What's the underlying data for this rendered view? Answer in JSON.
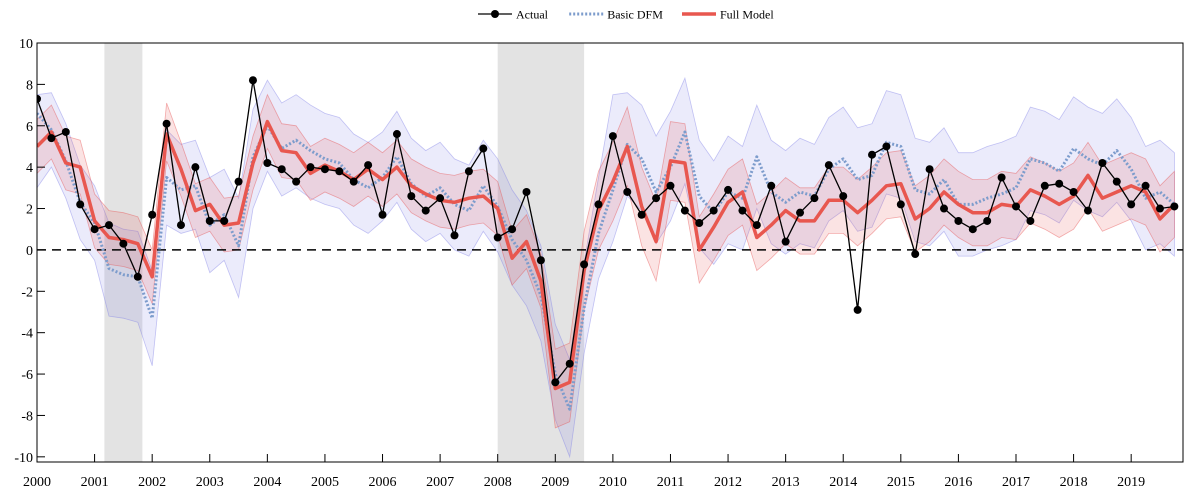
{
  "chart_data": {
    "type": "line",
    "x": [
      2000,
      2000.25,
      2000.5,
      2000.75,
      2001,
      2001.25,
      2001.5,
      2001.75,
      2002,
      2002.25,
      2002.5,
      2002.75,
      2003,
      2003.25,
      2003.5,
      2003.75,
      2004,
      2004.25,
      2004.5,
      2004.75,
      2005,
      2005.25,
      2005.5,
      2005.75,
      2006,
      2006.25,
      2006.5,
      2006.75,
      2007,
      2007.25,
      2007.5,
      2007.75,
      2008,
      2008.25,
      2008.5,
      2008.75,
      2009,
      2009.25,
      2009.5,
      2009.75,
      2010,
      2010.25,
      2010.5,
      2010.75,
      2011,
      2011.25,
      2011.5,
      2011.75,
      2012,
      2012.25,
      2012.5,
      2012.75,
      2013,
      2013.25,
      2013.5,
      2013.75,
      2014,
      2014.25,
      2014.5,
      2014.75,
      2015,
      2015.25,
      2015.5,
      2015.75,
      2016,
      2016.25,
      2016.5,
      2016.75,
      2017,
      2017.25,
      2017.5,
      2017.75,
      2018,
      2018.25,
      2018.5,
      2018.75,
      2019,
      2019.25,
      2019.5,
      2019.75
    ],
    "series": [
      {
        "name": "Actual",
        "color": "#000000",
        "marker": "circle",
        "line_style": "solid",
        "values": [
          7.3,
          5.4,
          5.7,
          2.2,
          1.0,
          1.2,
          0.3,
          -1.3,
          1.7,
          6.1,
          1.2,
          4.0,
          1.4,
          1.4,
          3.3,
          8.2,
          4.2,
          3.9,
          3.3,
          4.0,
          3.9,
          3.8,
          3.3,
          4.1,
          1.7,
          5.6,
          2.6,
          1.9,
          2.5,
          0.7,
          3.8,
          4.9,
          0.6,
          1.0,
          2.8,
          -0.5,
          -6.4,
          -5.5,
          -0.7,
          2.2,
          5.5,
          2.8,
          1.7,
          2.5,
          3.1,
          1.9,
          1.3,
          1.9,
          2.9,
          1.9,
          1.2,
          3.1,
          0.4,
          1.8,
          2.5,
          4.1,
          2.6,
          -2.9,
          4.6,
          5.0,
          2.2,
          -0.2,
          3.9,
          2.0,
          1.4,
          1.0,
          1.4,
          3.5,
          2.1,
          1.4,
          3.1,
          3.2,
          2.8,
          1.9,
          4.2,
          3.3,
          2.2,
          3.1,
          2.0,
          2.1
        ]
      },
      {
        "name": "Basic DFM",
        "color": "#7d9ccc",
        "band_color": "#8080e6",
        "marker": "none",
        "line_style": "dotted",
        "values": [
          6.6,
          5.8,
          4.3,
          2.3,
          1.3,
          -0.9,
          -1.2,
          -1.3,
          -3.3,
          3.5,
          2.9,
          3.1,
          1.2,
          1.7,
          0.2,
          4.5,
          6.0,
          4.9,
          5.3,
          4.8,
          4.4,
          4.2,
          3.4,
          3.0,
          3.5,
          4.5,
          3.2,
          2.6,
          3.0,
          2.2,
          1.9,
          3.1,
          2.1,
          0.5,
          -0.5,
          -2.2,
          -6.0,
          -7.7,
          -2.8,
          0.8,
          2.9,
          5.1,
          4.4,
          2.8,
          4.0,
          5.7,
          2.6,
          1.8,
          2.8,
          2.5,
          4.5,
          2.8,
          2.3,
          2.8,
          2.6,
          3.9,
          4.4,
          3.4,
          3.6,
          5.2,
          5.0,
          2.9,
          2.7,
          3.4,
          2.2,
          2.2,
          2.5,
          2.7,
          3.0,
          4.4,
          4.2,
          3.8,
          4.9,
          4.4,
          4.1,
          4.8,
          3.9,
          2.5,
          2.8,
          2.2
        ],
        "lower": [
          3.0,
          4.0,
          2.5,
          0.5,
          -0.5,
          -3.2,
          -3.3,
          -3.5,
          -5.6,
          1.2,
          0.8,
          1.0,
          -1.1,
          -0.5,
          -2.3,
          2.0,
          3.8,
          2.6,
          3.0,
          2.5,
          2.2,
          2.0,
          1.2,
          0.8,
          1.4,
          2.3,
          1.0,
          0.4,
          0.8,
          0.0,
          -0.3,
          0.9,
          -0.1,
          -1.7,
          -2.7,
          -4.4,
          -8.2,
          -10.0,
          -5.0,
          -1.4,
          0.4,
          2.6,
          1.9,
          0.3,
          1.4,
          3.2,
          0.1,
          -0.7,
          0.3,
          0.0,
          2.0,
          0.3,
          -0.2,
          0.3,
          0.1,
          1.4,
          1.9,
          0.9,
          1.1,
          2.7,
          2.5,
          0.4,
          0.2,
          0.9,
          -0.3,
          -0.3,
          0.0,
          0.2,
          0.5,
          1.9,
          1.7,
          1.3,
          2.4,
          1.9,
          1.6,
          2.3,
          1.4,
          0.0,
          0.3,
          -0.3
        ],
        "upper": [
          7.5,
          7.6,
          6.1,
          4.1,
          3.1,
          1.3,
          1.0,
          0.9,
          -1.0,
          5.8,
          5.1,
          5.3,
          3.5,
          3.9,
          2.5,
          6.8,
          8.2,
          7.1,
          7.5,
          7.0,
          6.6,
          6.4,
          5.6,
          5.2,
          5.7,
          6.7,
          5.4,
          4.8,
          5.2,
          4.4,
          4.1,
          5.3,
          4.4,
          2.9,
          1.9,
          0.2,
          -3.6,
          -5.3,
          -0.6,
          3.5,
          7.5,
          7.6,
          7.0,
          5.5,
          6.7,
          8.3,
          5.3,
          4.3,
          5.5,
          5.0,
          7.0,
          5.3,
          4.8,
          5.4,
          5.1,
          6.4,
          6.9,
          5.9,
          6.1,
          7.7,
          7.5,
          5.4,
          5.2,
          5.9,
          4.7,
          4.7,
          5.0,
          5.2,
          5.5,
          6.9,
          6.7,
          6.3,
          7.4,
          6.9,
          6.6,
          7.3,
          6.4,
          5.0,
          5.3,
          4.7
        ]
      },
      {
        "name": "Full Model",
        "color": "#e8574f",
        "band_color": "#e65050",
        "marker": "none",
        "line_style": "solid",
        "values": [
          5.0,
          5.7,
          4.2,
          4.0,
          1.4,
          0.6,
          0.5,
          0.3,
          -1.3,
          5.6,
          3.9,
          1.9,
          2.2,
          1.2,
          1.3,
          4.2,
          6.2,
          4.8,
          4.7,
          3.7,
          4.1,
          3.8,
          3.4,
          3.9,
          3.4,
          4.0,
          3.1,
          2.7,
          2.4,
          2.3,
          2.5,
          2.6,
          2.0,
          -0.4,
          0.4,
          -1.5,
          -6.7,
          -6.4,
          -1.0,
          1.9,
          3.3,
          5.0,
          2.1,
          0.4,
          4.3,
          4.2,
          0.0,
          1.1,
          2.3,
          2.8,
          0.6,
          1.2,
          1.9,
          1.4,
          1.4,
          2.4,
          2.4,
          1.8,
          2.4,
          3.1,
          3.2,
          1.5,
          2.0,
          2.8,
          2.2,
          1.8,
          1.8,
          2.2,
          2.1,
          2.9,
          2.6,
          2.2,
          2.6,
          3.6,
          2.5,
          2.8,
          3.1,
          2.8,
          1.5,
          2.2
        ],
        "lower": [
          3.7,
          4.4,
          2.9,
          2.7,
          0.1,
          -0.7,
          -0.8,
          -1.0,
          -2.6,
          4.3,
          2.6,
          0.6,
          0.9,
          -0.1,
          0.0,
          2.9,
          4.9,
          3.5,
          3.4,
          2.4,
          2.8,
          2.5,
          2.1,
          2.6,
          2.1,
          2.7,
          1.8,
          1.4,
          1.1,
          1.0,
          1.2,
          1.3,
          0.7,
          -1.7,
          -0.9,
          -2.8,
          -8.6,
          -8.3,
          -2.9,
          0.0,
          1.4,
          3.1,
          0.2,
          -1.5,
          2.4,
          2.3,
          -1.6,
          -0.5,
          0.7,
          1.2,
          -1.0,
          -0.4,
          0.3,
          -0.2,
          -0.2,
          0.8,
          0.8,
          0.2,
          0.8,
          1.5,
          1.6,
          -0.1,
          0.4,
          1.2,
          0.6,
          0.2,
          0.2,
          0.6,
          0.5,
          1.3,
          1.0,
          0.6,
          1.0,
          2.0,
          0.9,
          1.2,
          1.5,
          1.2,
          -0.1,
          0.6
        ],
        "upper": [
          6.3,
          7.0,
          5.5,
          5.3,
          2.7,
          1.9,
          1.8,
          1.6,
          0.0,
          7.1,
          5.2,
          3.2,
          3.5,
          2.5,
          2.6,
          5.5,
          7.5,
          6.1,
          6.0,
          5.0,
          5.4,
          5.1,
          4.7,
          5.2,
          4.7,
          5.3,
          4.4,
          4.0,
          3.7,
          3.6,
          3.8,
          3.9,
          3.3,
          0.9,
          1.7,
          -0.2,
          -4.8,
          -4.5,
          0.9,
          3.8,
          5.2,
          6.9,
          4.0,
          2.3,
          6.2,
          6.1,
          1.6,
          2.7,
          3.9,
          4.4,
          2.2,
          2.8,
          3.5,
          3.0,
          3.0,
          4.0,
          4.0,
          3.4,
          4.0,
          4.7,
          4.8,
          3.1,
          3.6,
          4.4,
          3.8,
          3.4,
          3.4,
          3.8,
          3.7,
          4.5,
          4.2,
          3.8,
          4.2,
          5.2,
          4.1,
          4.4,
          4.7,
          4.4,
          3.1,
          3.8
        ]
      }
    ],
    "shaded_periods": [
      [
        2001.17,
        2001.83
      ],
      [
        2008,
        2009.5
      ]
    ],
    "reference_line": 0,
    "xlim": [
      2000,
      2019.9
    ],
    "ylim": [
      -10.25,
      10
    ],
    "xticks": [
      2000,
      2001,
      2002,
      2003,
      2004,
      2005,
      2006,
      2007,
      2008,
      2009,
      2010,
      2011,
      2012,
      2013,
      2014,
      2015,
      2016,
      2017,
      2018,
      2019
    ],
    "yticks": [
      10,
      8,
      6,
      4,
      2,
      0,
      -2,
      -4,
      -6,
      -8,
      -10
    ],
    "legend": "top"
  }
}
